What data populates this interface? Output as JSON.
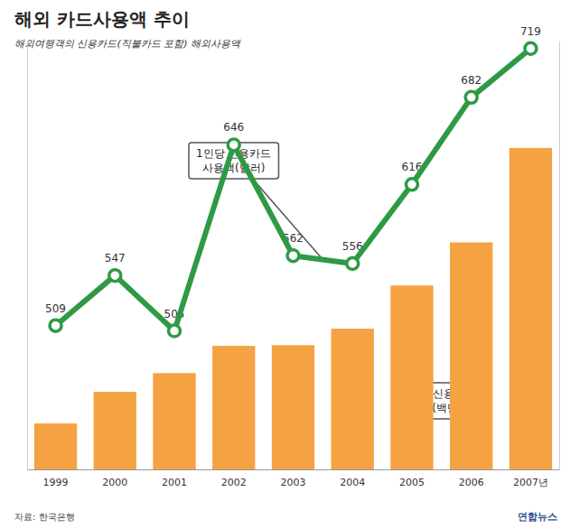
{
  "chart_data": {
    "type": "bar",
    "title": "해외 카드사용액 추이",
    "subtitle": "해외여행객의 신용카드(직불카드 포함) 해외사용액",
    "categories": [
      "1999",
      "2000",
      "2001",
      "2002",
      "2003",
      "2004",
      "2005",
      "2006",
      "2007년"
    ],
    "series": [
      {
        "name": "해외 신용카드 사용액(백만달러)",
        "type": "bar",
        "color": "#f5a243",
        "values": [
          911,
          1539,
          1909,
          2449,
          2463,
          2790,
          3647,
          4500,
          6373
        ]
      },
      {
        "name": "1인당 신용카드 사용액(달러)",
        "type": "line",
        "color": "#2f9a44",
        "marker": "circle",
        "axis": "y2",
        "values": [
          509,
          547,
          505,
          646,
          562,
          556,
          616,
          682,
          719
        ]
      }
    ],
    "ylim": [
      0,
      8500
    ],
    "y2lim": [
      400,
      725
    ],
    "data_labels": true,
    "tick_labels": "x",
    "source": "자료: 한국은행",
    "credit": "연합뉴스"
  }
}
